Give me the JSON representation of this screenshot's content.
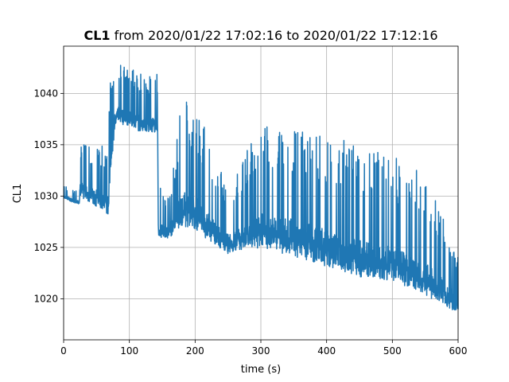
{
  "chart_data": {
    "type": "line",
    "title_bold": "CL1",
    "title_rest": " from 2020/01/22 17:02:16 to 2020/01/22 17:12:16",
    "xlabel": "time (s)",
    "ylabel": "CL1",
    "xlim": [
      0,
      600
    ],
    "ylim": [
      1016,
      1044.6
    ],
    "grid": true,
    "legend": "none",
    "x_ticks": [
      0,
      100,
      200,
      300,
      400,
      500,
      600
    ],
    "y_ticks": [
      1020,
      1025,
      1030,
      1035,
      1040
    ],
    "series": [
      {
        "color": "#1f77b4",
        "envelope": [
          {
            "x": 0,
            "low": 1029.5,
            "high": 1031
          },
          {
            "x": 20,
            "low": 1029,
            "high": 1030.5
          },
          {
            "x": 24,
            "low": 1029,
            "high": 1030.5
          },
          {
            "x": 25,
            "low": 1029,
            "high": 1035
          },
          {
            "x": 40,
            "low": 1028,
            "high": 1035
          },
          {
            "x": 55,
            "low": 1027.5,
            "high": 1035
          },
          {
            "x": 68,
            "low": 1026.5,
            "high": 1035
          },
          {
            "x": 71,
            "low": 1030,
            "high": 1043
          },
          {
            "x": 80,
            "low": 1036,
            "high": 1043
          },
          {
            "x": 100,
            "low": 1035.5,
            "high": 1042.5
          },
          {
            "x": 120,
            "low": 1035,
            "high": 1042
          },
          {
            "x": 143,
            "low": 1035,
            "high": 1042
          },
          {
            "x": 144,
            "low": 1025,
            "high": 1031
          },
          {
            "x": 160,
            "low": 1025,
            "high": 1030
          },
          {
            "x": 180,
            "low": 1024.5,
            "high": 1039.5
          },
          {
            "x": 200,
            "low": 1024,
            "high": 1039
          },
          {
            "x": 250,
            "low": 1023,
            "high": 1031
          },
          {
            "x": 300,
            "low": 1022.5,
            "high": 1037
          },
          {
            "x": 350,
            "low": 1021.5,
            "high": 1037
          },
          {
            "x": 400,
            "low": 1020.5,
            "high": 1036
          },
          {
            "x": 450,
            "low": 1019.5,
            "high": 1035
          },
          {
            "x": 500,
            "low": 1019,
            "high": 1034
          },
          {
            "x": 550,
            "low": 1018,
            "high": 1032
          },
          {
            "x": 580,
            "low": 1017.5,
            "high": 1028
          },
          {
            "x": 600,
            "low": 1017.5,
            "high": 1024
          }
        ]
      }
    ]
  }
}
